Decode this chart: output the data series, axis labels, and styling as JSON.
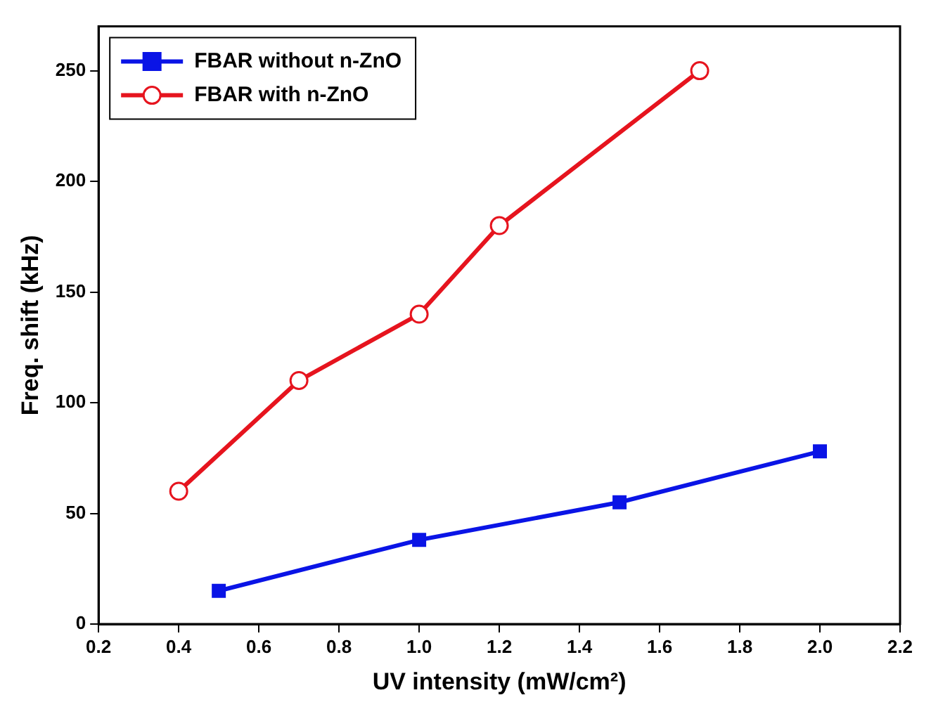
{
  "chart_data": {
    "type": "line",
    "xlabel": "UV intensity (mW/cm²)",
    "ylabel": "Freq. shift (kHz)",
    "xlim": [
      0.2,
      2.2
    ],
    "xticks": [
      0.2,
      0.4,
      0.6,
      0.8,
      {
        "value": 1,
        "label": "1.0"
      },
      1.2,
      1.4,
      1.6,
      1.8,
      {
        "value": 2,
        "label": "2.0"
      },
      2.2
    ],
    "ylim": [
      0,
      270
    ],
    "yticks": [
      0,
      50,
      100,
      150,
      200,
      250
    ],
    "grid": false,
    "legend": "top left",
    "line_style": "solid",
    "series": [
      {
        "name": "FBAR without n-ZnO",
        "color": "#0a14e6",
        "marker": "square",
        "x": [
          0.5,
          1.0,
          1.5,
          2.0
        ],
        "values": [
          15,
          38,
          55,
          78
        ]
      },
      {
        "name": "FBAR with n-ZnO",
        "color": "#e6141e",
        "marker": "circle",
        "x": [
          0.4,
          0.7,
          1.0,
          1.2,
          1.7
        ],
        "values": [
          60,
          110,
          140,
          180,
          250
        ]
      }
    ]
  }
}
